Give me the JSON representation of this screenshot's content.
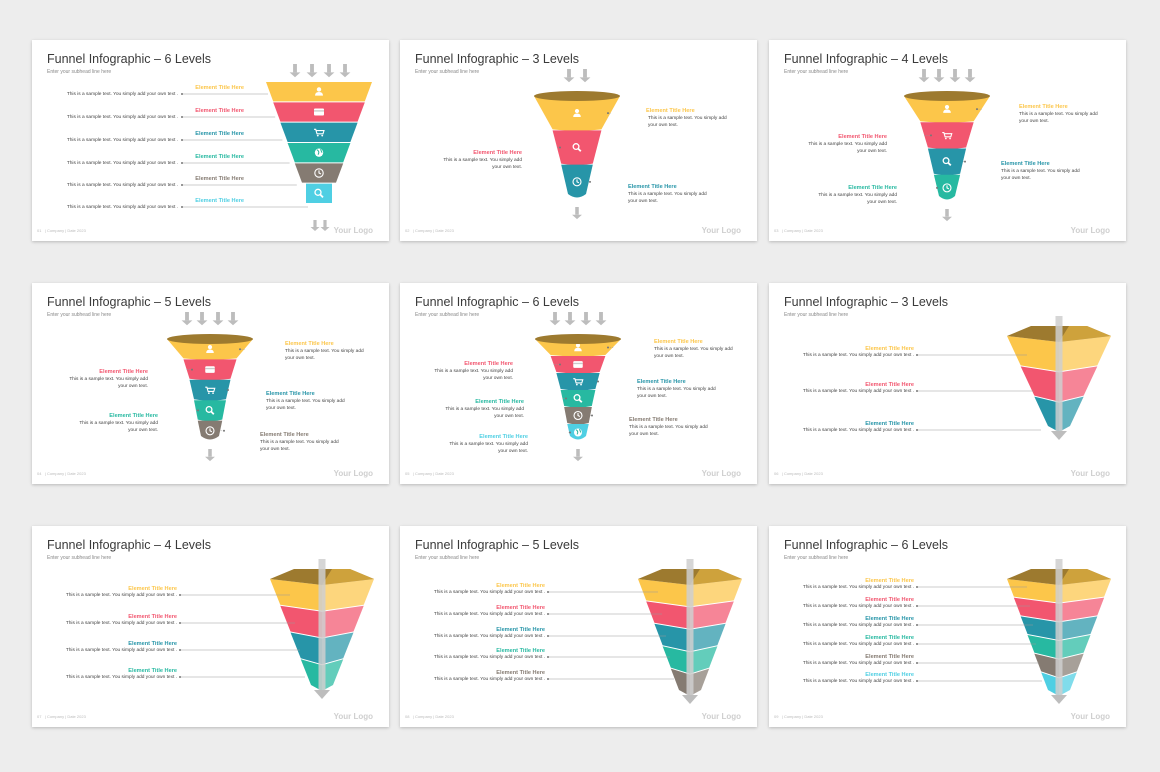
{
  "colors": {
    "yellow": "#fcc64a",
    "red": "#f2566f",
    "teal": "#2795a8",
    "green": "#27b9a1",
    "gray": "#857b72",
    "cyan": "#4fcfe3",
    "rim": "#9d7a2f",
    "arrow": "#bdbdbd"
  },
  "common": {
    "subhead": "Enter your subhead line here",
    "footer": "| Company | Date 2023",
    "logo": "Your Logo",
    "element_title": "Element Title Here",
    "sample_long": "This is a sample text. You simply add your own text .",
    "sample_two": "This is a sample text. You simply add your own text."
  },
  "slides": [
    {
      "id": "s1",
      "title": "Funnel Infographic – 6 Levels",
      "page": "01",
      "icons": [
        "user-icon",
        "credit-card-icon",
        "shopping-cart-icon",
        "globe-icon",
        "clock-icon",
        "search-icon"
      ]
    },
    {
      "id": "s2",
      "title": "Funnel Infographic – 3 Levels",
      "page": "02",
      "icons": [
        "user-icon",
        "search-icon",
        "clock-icon"
      ]
    },
    {
      "id": "s3",
      "title": "Funnel Infographic – 4 Levels",
      "page": "03",
      "icons": [
        "user-icon",
        "shopping-cart-icon",
        "search-icon",
        "clock-icon"
      ]
    },
    {
      "id": "s4",
      "title": "Funnel Infographic – 5 Levels",
      "page": "04",
      "icons": [
        "user-icon",
        "credit-card-icon",
        "shopping-cart-icon",
        "search-icon",
        "clock-icon"
      ]
    },
    {
      "id": "s5",
      "title": "Funnel Infographic – 6 Levels",
      "page": "05",
      "icons": [
        "user-icon",
        "credit-card-icon",
        "shopping-cart-icon",
        "search-icon",
        "clock-icon",
        "globe-icon"
      ]
    },
    {
      "id": "s6",
      "title": "Funnel Infographic – 3 Levels",
      "page": "06",
      "icons": []
    },
    {
      "id": "s7",
      "title": "Funnel Infographic – 4 Levels",
      "page": "07",
      "icons": []
    },
    {
      "id": "s8",
      "title": "Funnel Infographic – 5 Levels",
      "page": "08",
      "icons": []
    },
    {
      "id": "s9",
      "title": "Funnel Infographic – 6 Levels",
      "page": "09",
      "icons": []
    }
  ]
}
